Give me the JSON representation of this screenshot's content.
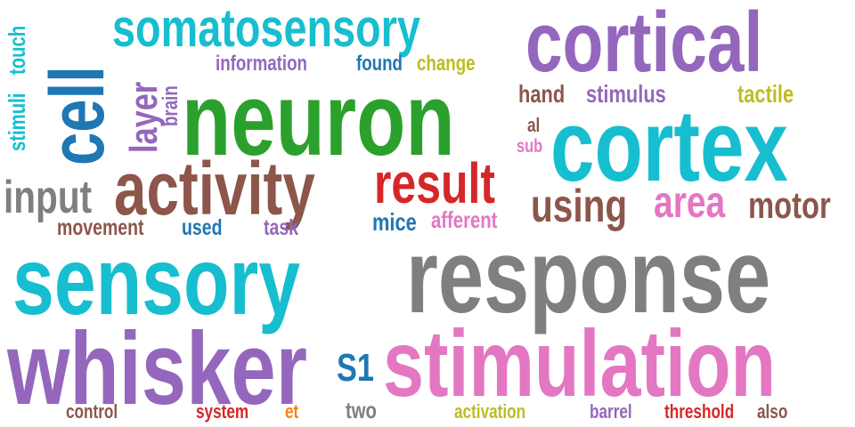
{
  "words": {
    "response": "response",
    "stimulation": "stimulation",
    "sensory": "sensory",
    "whisker": "whisker",
    "neuron": "neuron",
    "cortex": "cortex",
    "cortical": "cortical",
    "activity": "activity",
    "somatosensory": "somatosensory",
    "cell": "cell",
    "result": "result",
    "area": "area",
    "motor": "motor",
    "using": "using",
    "input": "input",
    "layer": "layer",
    "s1": "S1",
    "mice": "mice",
    "afferent": "afferent",
    "movement": "movement",
    "used": "used",
    "task": "task",
    "information": "information",
    "found": "found",
    "change": "change",
    "hand": "hand",
    "stimulus": "stimulus",
    "tactile": "tactile",
    "al": "al",
    "sub": "sub",
    "brain": "brain",
    "stimuli": "stimuli",
    "touch": "touch",
    "control": "control",
    "system": "system",
    "et": "et",
    "two": "two",
    "activation": "activation",
    "barrel": "barrel",
    "threshold": "threshold",
    "also": "also"
  },
  "colors": {
    "purple": "#9467bd",
    "teal": "#17becf",
    "green": "#2ca02c",
    "blue": "#1f77b4",
    "brown": "#8c564b",
    "red": "#d62728",
    "pink": "#e377c2",
    "gray": "#7f7f7f",
    "olive": "#bcbd22",
    "orange": "#ff7f0e"
  }
}
